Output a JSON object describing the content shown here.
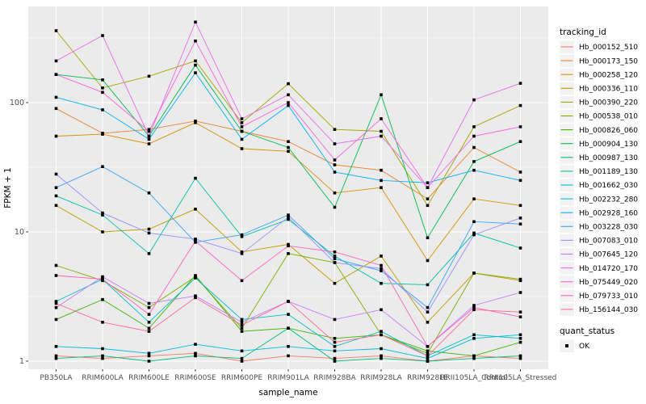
{
  "chart_data": {
    "type": "line",
    "title": "",
    "xlabel": "sample_name",
    "ylabel": "FPKM + 1",
    "y_scale": "log10",
    "y_ticks": [
      1,
      10,
      100
    ],
    "y_minor_ticks": [
      3.162,
      31.62,
      316.2
    ],
    "ylim": [
      0.87,
      550
    ],
    "grid": true,
    "panel_background": "#EBEBEB",
    "gridline_color": "#FFFFFF",
    "tick_label_color": "#4D4D4D",
    "point_color": "#000000",
    "legend_position": "right",
    "categories": [
      "PB350LA",
      "RRIM600LA",
      "RRIM600LE",
      "RRIM600SE",
      "RRIM600PE",
      "RRIM901LA",
      "RRIM928BA",
      "RRIM928LA",
      "RRIM928LE",
      "RRII105LA_Control",
      "RRII105LA_Stressed"
    ],
    "series": [
      {
        "name": "Hb_000152_510",
        "color": "#F8766D",
        "values": [
          1.1,
          1.05,
          1.1,
          1.15,
          1.0,
          1.1,
          1.05,
          1.1,
          1.0,
          1.1,
          1.05
        ]
      },
      {
        "name": "Hb_000173_150",
        "color": "#EA8331",
        "values": [
          90,
          58,
          62,
          72,
          60,
          50,
          33,
          30,
          18,
          45,
          29
        ]
      },
      {
        "name": "Hb_000258_120",
        "color": "#D89000",
        "values": [
          55,
          57,
          48,
          70,
          44,
          42,
          20,
          22,
          6,
          18,
          16
        ]
      },
      {
        "name": "Hb_000336_110",
        "color": "#C09B00",
        "values": [
          16,
          10,
          10.5,
          15,
          7,
          8,
          4,
          6.5,
          2,
          4.8,
          4.2
        ]
      },
      {
        "name": "Hb_000390_220",
        "color": "#A3A500",
        "values": [
          360,
          130,
          160,
          210,
          70,
          140,
          62,
          60,
          16,
          65,
          95
        ]
      },
      {
        "name": "Hb_000538_010",
        "color": "#7CAE00",
        "values": [
          5.5,
          4.2,
          2.6,
          4.5,
          1.8,
          6.8,
          5.8,
          1.6,
          1.15,
          4.8,
          4.3
        ]
      },
      {
        "name": "Hb_000826_060",
        "color": "#39B600",
        "values": [
          2.1,
          3.0,
          1.8,
          4.6,
          1.7,
          1.8,
          1.5,
          1.6,
          1.2,
          1.1,
          1.4
        ]
      },
      {
        "name": "Hb_000904_130",
        "color": "#00BB4E",
        "values": [
          165,
          150,
          55,
          195,
          60,
          45,
          15.5,
          115,
          9,
          35,
          50
        ]
      },
      {
        "name": "Hb_000987_130",
        "color": "#00BF7D",
        "values": [
          1.05,
          1.1,
          1.0,
          1.1,
          1.05,
          1.8,
          1.0,
          1.05,
          1.0,
          1.05,
          1.1
        ]
      },
      {
        "name": "Hb_001189_130",
        "color": "#00C1A3",
        "values": [
          19,
          13.5,
          6.8,
          26,
          9.2,
          12.5,
          6.5,
          4.0,
          3.9,
          9.8,
          7.5
        ]
      },
      {
        "name": "Hb_001662_030",
        "color": "#00BFC4",
        "values": [
          2.9,
          4.3,
          2.0,
          4.4,
          2.1,
          2.3,
          1.3,
          1.7,
          1.1,
          1.6,
          1.5
        ]
      },
      {
        "name": "Hb_002232_280",
        "color": "#00BAE0",
        "values": [
          1.3,
          1.25,
          1.15,
          1.35,
          1.2,
          1.3,
          1.2,
          1.25,
          1.05,
          1.5,
          1.6
        ]
      },
      {
        "name": "Hb_002928_160",
        "color": "#00B0F6",
        "values": [
          110,
          88,
          52,
          170,
          52,
          95,
          29,
          25,
          24,
          30,
          25
        ]
      },
      {
        "name": "Hb_003228_030",
        "color": "#35A2FF",
        "values": [
          22,
          32,
          20,
          8.3,
          9.5,
          13.5,
          6.2,
          5.0,
          2.6,
          12,
          11.5
        ]
      },
      {
        "name": "Hb_007083_010",
        "color": "#9590FF",
        "values": [
          28,
          14,
          9.8,
          8.8,
          6.8,
          13,
          5.8,
          5.2,
          2.4,
          9.5,
          12.8
        ]
      },
      {
        "name": "Hb_007645_120",
        "color": "#C77CFF",
        "values": [
          2.6,
          4.5,
          2.8,
          3.2,
          2.0,
          2.9,
          2.1,
          2.5,
          1.3,
          2.7,
          3.4
        ]
      },
      {
        "name": "Hb_014720_170",
        "color": "#E76BF3",
        "values": [
          210,
          330,
          55,
          420,
          75,
          115,
          48,
          55,
          22,
          105,
          141
        ]
      },
      {
        "name": "Hb_075449_020",
        "color": "#FA62DB",
        "values": [
          165,
          120,
          60,
          300,
          65,
          100,
          36,
          75,
          22,
          55,
          65
        ]
      },
      {
        "name": "Hb_079733_010",
        "color": "#FF62BC",
        "values": [
          4.6,
          4.3,
          2.3,
          8.5,
          4.2,
          7.8,
          7.0,
          5.5,
          1.3,
          2.6,
          2.2
        ]
      },
      {
        "name": "Hb_156144_030",
        "color": "#FF6A98",
        "values": [
          2.8,
          2.0,
          1.7,
          3.1,
          1.9,
          2.9,
          1.4,
          1.6,
          1.1,
          2.5,
          2.4
        ]
      }
    ]
  },
  "legend": {
    "tracking_title": "tracking_id",
    "quant_title": "quant_status",
    "quant_items": [
      {
        "label": "OK",
        "marker": "black-square"
      }
    ]
  }
}
